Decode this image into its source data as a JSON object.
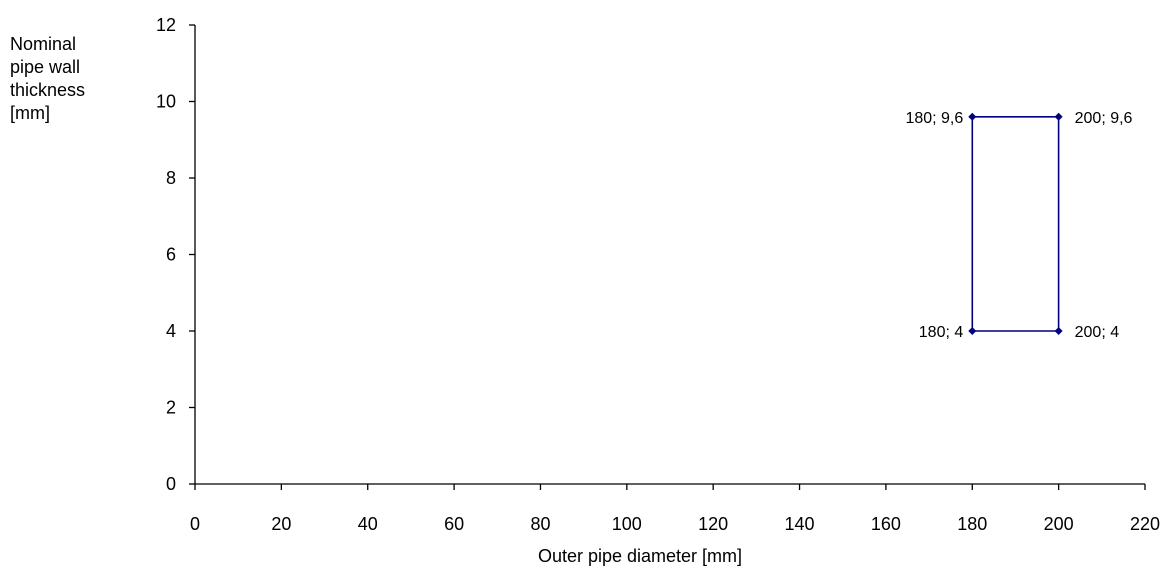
{
  "chart_data": {
    "type": "line",
    "title": "",
    "xlabel": "Outer pipe diameter [mm]",
    "ylabel_lines": [
      "Nominal",
      "pipe wall",
      "thickness",
      "[mm]"
    ],
    "xlim": [
      0,
      220
    ],
    "ylim": [
      0,
      12
    ],
    "x_ticks": [
      0,
      20,
      40,
      60,
      80,
      100,
      120,
      140,
      160,
      180,
      200,
      220
    ],
    "y_ticks": [
      0,
      2,
      4,
      6,
      8,
      10,
      12
    ],
    "grid": false,
    "legend": "none",
    "series": [
      {
        "color": "#000080",
        "points": [
          {
            "x": 180,
            "y": 4,
            "label": "180; 4",
            "label_side": "left"
          },
          {
            "x": 180,
            "y": 9.6,
            "label": "180; 9,6",
            "label_side": "left"
          },
          {
            "x": 200,
            "y": 9.6,
            "label": "200; 9,6",
            "label_side": "right"
          },
          {
            "x": 200,
            "y": 4,
            "label": "200; 4",
            "label_side": "right"
          },
          {
            "x": 180,
            "y": 4
          }
        ]
      }
    ]
  }
}
